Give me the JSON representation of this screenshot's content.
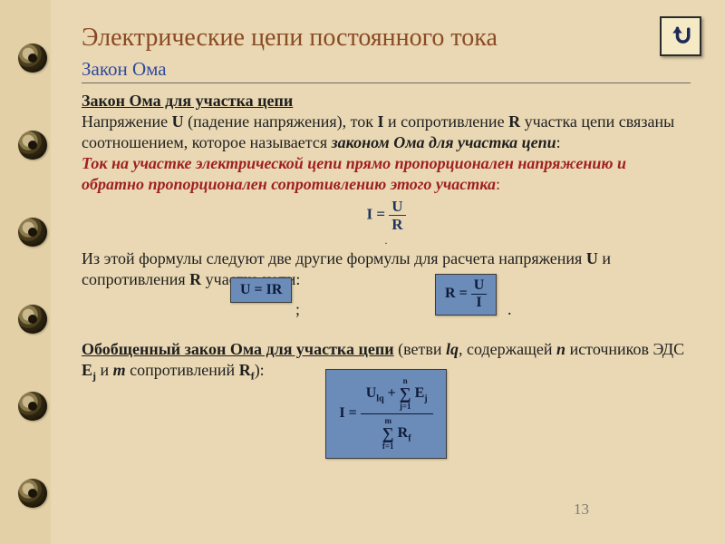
{
  "pageNumber": "13",
  "binding": {
    "ringCount": 6,
    "startTop": 48,
    "gap": 96
  },
  "backButton": {
    "name": "back-icon"
  },
  "title": "Электрические цепи постоянного тока",
  "subtitle": "Закон  Ома",
  "section1": {
    "heading": "Закон Ома для участка цепи",
    "p1a": "Напряжение ",
    "p1b": " (падение напряжения), ток ",
    "p1c": " и сопротивление ",
    "p1d": " участка цепи связаны соотношением, которое называется ",
    "lawName": "законом Ома для участка цепи",
    "redLine": "Ток на участке электрической цепи прямо пропорционален напряжению и обратно пропорционален сопротивлению этого участка",
    "U": "U",
    "I": "I",
    "R": "R",
    "formula1": {
      "lhs": "I",
      "num": "U",
      "den": "R",
      "color": "#1f355f"
    },
    "p2a": "Из этой формулы следуют две другие формулы для расчета напряжения ",
    "p2b": " и сопротивления ",
    "p2c": " участка цепи:",
    "formula2": {
      "text": "U = IR",
      "bg": "#6b8bb8"
    },
    "formula3": {
      "lhs": "R",
      "num": "U",
      "den": "I",
      "bg": "#6b8bb8"
    }
  },
  "section2": {
    "heading": "Обобщенный закон Ома для участка цепи",
    "tail1": " (ветви ",
    "lq": "lq",
    "tail2": ", содержащей ",
    "n": "n",
    "tail3": " источников ЭДС ",
    "Ej": "Ej",
    "tail4": " и ",
    "m": "m",
    "tail5": " сопротивлений ",
    "Rf": "Rf",
    "tail6": "):",
    "formula4": {
      "bg": "#6b8bb8",
      "lhs": "I",
      "num_a": "U",
      "num_a_sub": "lq",
      "plus": " + ",
      "sum1_top": "n",
      "sum1_bot": "j=1",
      "sum1_body": "E",
      "sum1_sub": "j",
      "sum2_top": "m",
      "sum2_bot": "f=1",
      "sum2_body": "R",
      "sum2_sub": "f"
    }
  },
  "colors": {
    "pageBg": "#e9d8b3",
    "bindingBg": "#e3d0a6",
    "titleColor": "#8a4a24",
    "subtitleColor": "#2f4aa0",
    "redText": "#a02020",
    "formulaBoxBg": "#6b8bb8",
    "formulaPlain": "#1f355f"
  }
}
